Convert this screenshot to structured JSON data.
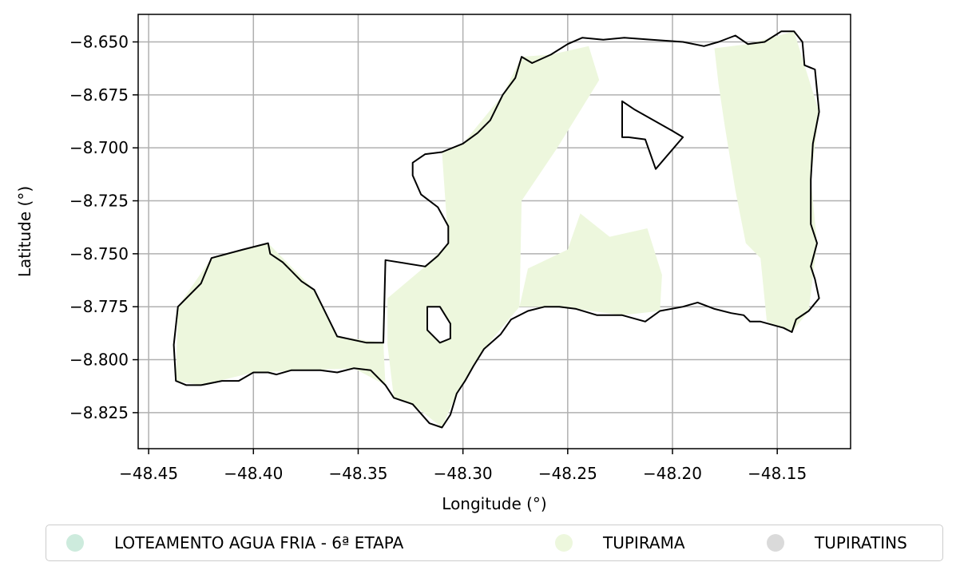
{
  "chart_data": {
    "type": "map",
    "xlabel": "Longitude (°)",
    "ylabel": "Latitude (°)",
    "xlim": [
      -48.455,
      -48.115
    ],
    "ylim": [
      -8.842,
      -8.637
    ],
    "xticks": [
      -48.45,
      -48.4,
      -48.35,
      -48.3,
      -48.25,
      -48.2,
      -48.15
    ],
    "xtick_labels": [
      "−48.45",
      "−48.40",
      "−48.35",
      "−48.30",
      "−48.25",
      "−48.20",
      "−48.15"
    ],
    "yticks": [
      -8.65,
      -8.675,
      -8.7,
      -8.725,
      -8.75,
      -8.775,
      -8.8,
      -8.825
    ],
    "ytick_labels": [
      "−8.650",
      "−8.675",
      "−8.700",
      "−8.725",
      "−8.750",
      "−8.775",
      "−8.800",
      "−8.825"
    ],
    "grid": true,
    "legend_placement": "bottom",
    "legend": [
      {
        "label": "LOTEAMENTO AGUA FRIA - 6ª ETAPA",
        "color": "#cdebdd"
      },
      {
        "label": "TUPIRAMA",
        "color": "#edf7dd"
      },
      {
        "label": "TUPIRATINS",
        "color": "#dadada"
      }
    ],
    "boundary": [
      [
        -48.437,
        -8.81
      ],
      [
        -48.438,
        -8.793
      ],
      [
        -48.436,
        -8.775
      ],
      [
        -48.432,
        -8.771
      ],
      [
        -48.425,
        -8.764
      ],
      [
        -48.42,
        -8.752
      ],
      [
        -48.405,
        -8.748
      ],
      [
        -48.393,
        -8.745
      ],
      [
        -48.392,
        -8.75
      ],
      [
        -48.386,
        -8.754
      ],
      [
        -48.382,
        -8.758
      ],
      [
        -48.377,
        -8.763
      ],
      [
        -48.371,
        -8.767
      ],
      [
        -48.367,
        -8.775
      ],
      [
        -48.364,
        -8.781
      ],
      [
        -48.36,
        -8.789
      ],
      [
        -48.346,
        -8.792
      ],
      [
        -48.338,
        -8.792
      ],
      [
        -48.337,
        -8.753
      ],
      [
        -48.318,
        -8.756
      ],
      [
        -48.312,
        -8.751
      ],
      [
        -48.307,
        -8.745
      ],
      [
        -48.307,
        -8.737
      ],
      [
        -48.312,
        -8.728
      ],
      [
        -48.32,
        -8.722
      ],
      [
        -48.324,
        -8.713
      ],
      [
        -48.324,
        -8.707
      ],
      [
        -48.318,
        -8.703
      ],
      [
        -48.31,
        -8.702
      ],
      [
        -48.3,
        -8.698
      ],
      [
        -48.293,
        -8.693
      ],
      [
        -48.287,
        -8.687
      ],
      [
        -48.281,
        -8.675
      ],
      [
        -48.275,
        -8.667
      ],
      [
        -48.272,
        -8.657
      ],
      [
        -48.267,
        -8.66
      ],
      [
        -48.258,
        -8.656
      ],
      [
        -48.25,
        -8.651
      ],
      [
        -48.243,
        -8.648
      ],
      [
        -48.233,
        -8.649
      ],
      [
        -48.223,
        -8.648
      ],
      [
        -48.21,
        -8.649
      ],
      [
        -48.195,
        -8.65
      ],
      [
        -48.185,
        -8.652
      ],
      [
        -48.178,
        -8.65
      ],
      [
        -48.17,
        -8.647
      ],
      [
        -48.164,
        -8.651
      ],
      [
        -48.156,
        -8.65
      ],
      [
        -48.148,
        -8.645
      ],
      [
        -48.142,
        -8.645
      ],
      [
        -48.138,
        -8.65
      ],
      [
        -48.137,
        -8.661
      ],
      [
        -48.132,
        -8.663
      ],
      [
        -48.13,
        -8.683
      ],
      [
        -48.133,
        -8.698
      ],
      [
        -48.134,
        -8.715
      ],
      [
        -48.134,
        -8.736
      ],
      [
        -48.131,
        -8.745
      ],
      [
        -48.134,
        -8.756
      ],
      [
        -48.132,
        -8.762
      ],
      [
        -48.13,
        -8.771
      ],
      [
        -48.135,
        -8.777
      ],
      [
        -48.141,
        -8.781
      ],
      [
        -48.143,
        -8.787
      ],
      [
        -48.147,
        -8.785
      ],
      [
        -48.158,
        -8.782
      ],
      [
        -48.163,
        -8.782
      ],
      [
        -48.166,
        -8.779
      ],
      [
        -48.172,
        -8.778
      ],
      [
        -48.18,
        -8.776
      ],
      [
        -48.188,
        -8.773
      ],
      [
        -48.195,
        -8.775
      ],
      [
        -48.206,
        -8.777
      ],
      [
        -48.213,
        -8.782
      ],
      [
        -48.224,
        -8.779
      ],
      [
        -48.236,
        -8.779
      ],
      [
        -48.246,
        -8.776
      ],
      [
        -48.254,
        -8.775
      ],
      [
        -48.261,
        -8.775
      ],
      [
        -48.269,
        -8.777
      ],
      [
        -48.277,
        -8.781
      ],
      [
        -48.282,
        -8.788
      ],
      [
        -48.29,
        -8.795
      ],
      [
        -48.295,
        -8.803
      ],
      [
        -48.299,
        -8.81
      ],
      [
        -48.303,
        -8.816
      ],
      [
        -48.306,
        -8.826
      ],
      [
        -48.31,
        -8.832
      ],
      [
        -48.316,
        -8.83
      ],
      [
        -48.324,
        -8.821
      ],
      [
        -48.333,
        -8.818
      ],
      [
        -48.337,
        -8.812
      ],
      [
        -48.344,
        -8.805
      ],
      [
        -48.352,
        -8.804
      ],
      [
        -48.36,
        -8.806
      ],
      [
        -48.368,
        -8.805
      ],
      [
        -48.374,
        -8.805
      ],
      [
        -48.382,
        -8.805
      ],
      [
        -48.389,
        -8.807
      ],
      [
        -48.393,
        -8.806
      ],
      [
        -48.4,
        -8.806
      ],
      [
        -48.407,
        -8.81
      ],
      [
        -48.415,
        -8.81
      ],
      [
        -48.425,
        -8.812
      ],
      [
        -48.432,
        -8.812
      ],
      [
        -48.437,
        -8.81
      ]
    ],
    "holes": [
      [
        [
          -48.221,
          -8.695
        ],
        [
          -48.213,
          -8.696
        ],
        [
          -48.208,
          -8.71
        ],
        [
          -48.195,
          -8.695
        ],
        [
          -48.2,
          -8.692
        ],
        [
          -48.218,
          -8.682
        ],
        [
          -48.224,
          -8.678
        ],
        [
          -48.224,
          -8.695
        ]
      ],
      [
        [
          -48.317,
          -8.775
        ],
        [
          -48.311,
          -8.775
        ],
        [
          -48.306,
          -8.783
        ],
        [
          -48.306,
          -8.79
        ],
        [
          -48.311,
          -8.792
        ],
        [
          -48.317,
          -8.786
        ],
        [
          -48.317,
          -8.775
        ]
      ]
    ],
    "fill_patches": [
      [
        [
          -48.437,
          -8.81
        ],
        [
          -48.436,
          -8.775
        ],
        [
          -48.42,
          -8.752
        ],
        [
          -48.393,
          -8.745
        ],
        [
          -48.371,
          -8.767
        ],
        [
          -48.36,
          -8.789
        ],
        [
          -48.338,
          -8.792
        ],
        [
          -48.337,
          -8.812
        ],
        [
          -48.352,
          -8.804
        ],
        [
          -48.374,
          -8.805
        ],
        [
          -48.4,
          -8.806
        ],
        [
          -48.425,
          -8.812
        ]
      ],
      [
        [
          -48.336,
          -8.793
        ],
        [
          -48.336,
          -8.771
        ],
        [
          -48.318,
          -8.756
        ],
        [
          -48.307,
          -8.745
        ],
        [
          -48.31,
          -8.702
        ],
        [
          -48.3,
          -8.698
        ],
        [
          -48.281,
          -8.675
        ],
        [
          -48.272,
          -8.657
        ],
        [
          -48.258,
          -8.656
        ],
        [
          -48.24,
          -8.652
        ],
        [
          -48.235,
          -8.668
        ],
        [
          -48.255,
          -8.7
        ],
        [
          -48.272,
          -8.725
        ],
        [
          -48.273,
          -8.775
        ],
        [
          -48.29,
          -8.795
        ],
        [
          -48.303,
          -8.816
        ],
        [
          -48.31,
          -8.832
        ],
        [
          -48.324,
          -8.821
        ],
        [
          -48.333,
          -8.818
        ]
      ],
      [
        [
          -48.273,
          -8.775
        ],
        [
          -48.269,
          -8.757
        ],
        [
          -48.25,
          -8.748
        ],
        [
          -48.244,
          -8.731
        ],
        [
          -48.23,
          -8.742
        ],
        [
          -48.212,
          -8.738
        ],
        [
          -48.205,
          -8.76
        ],
        [
          -48.206,
          -8.777
        ],
        [
          -48.224,
          -8.779
        ],
        [
          -48.246,
          -8.776
        ],
        [
          -48.261,
          -8.775
        ]
      ],
      [
        [
          -48.18,
          -8.653
        ],
        [
          -48.178,
          -8.67
        ],
        [
          -48.175,
          -8.69
        ],
        [
          -48.17,
          -8.72
        ],
        [
          -48.165,
          -8.745
        ],
        [
          -48.158,
          -8.752
        ],
        [
          -48.155,
          -8.782
        ],
        [
          -48.143,
          -8.787
        ],
        [
          -48.135,
          -8.777
        ],
        [
          -48.131,
          -8.745
        ],
        [
          -48.134,
          -8.715
        ],
        [
          -48.13,
          -8.683
        ],
        [
          -48.137,
          -8.661
        ],
        [
          -48.142,
          -8.645
        ],
        [
          -48.164,
          -8.651
        ]
      ]
    ]
  }
}
